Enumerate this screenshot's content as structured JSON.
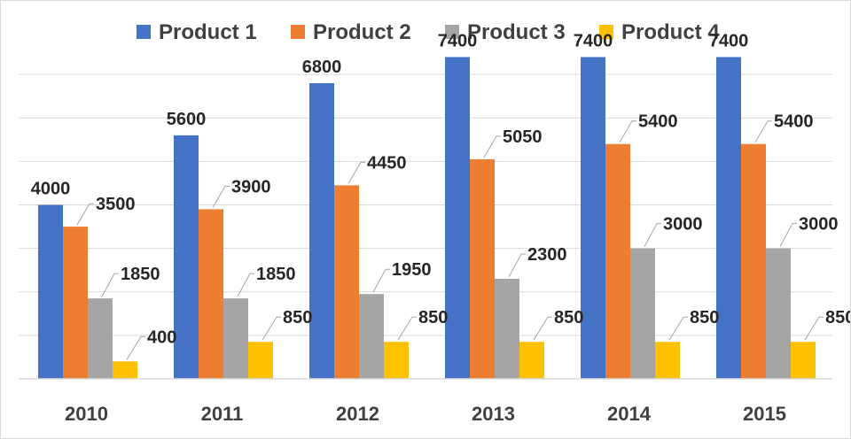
{
  "chart_data": {
    "type": "bar",
    "title": "",
    "xlabel": "",
    "ylabel": "",
    "categories": [
      "2010",
      "2011",
      "2012",
      "2013",
      "2014",
      "2015"
    ],
    "series": [
      {
        "name": "Product 1",
        "color": "#4472C4",
        "values": [
          4000,
          5600,
          6800,
          7400,
          7400,
          7400
        ]
      },
      {
        "name": "Product 2",
        "color": "#ED7D31",
        "values": [
          3500,
          3900,
          4450,
          5050,
          5400,
          5400
        ]
      },
      {
        "name": "Product 3",
        "color": "#A5A5A5",
        "values": [
          1850,
          1850,
          1950,
          2300,
          3000,
          3000
        ]
      },
      {
        "name": "Product 4",
        "color": "#FFC000",
        "values": [
          400,
          850,
          850,
          850,
          850,
          850
        ]
      }
    ],
    "ylim": [
      0,
      8000
    ],
    "y_tick_labels_shown": false,
    "grid": true,
    "gridline_step": 1000,
    "legend_position": "top",
    "data_labels": true
  }
}
